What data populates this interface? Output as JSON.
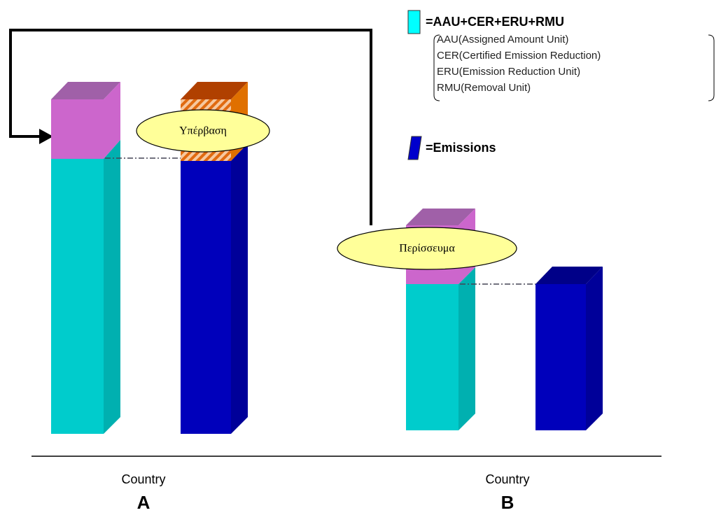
{
  "legend": {
    "allowance_label": "=AAU+CER+ERU+RMU",
    "items": [
      "AAU(Assigned Amount Unit)",
      "CER(Certified Emission Reduction)",
      "ERU(Emission Reduction Unit)",
      "RMU(Removal Unit)"
    ],
    "emissions_label": "=Emissions"
  },
  "callouts": {
    "excess": "Υπέρβαση",
    "surplus": "Περίσσευμα"
  },
  "countries": [
    {
      "label": "Country",
      "letter": "A"
    },
    {
      "label": "Country",
      "letter": "B"
    }
  ]
}
